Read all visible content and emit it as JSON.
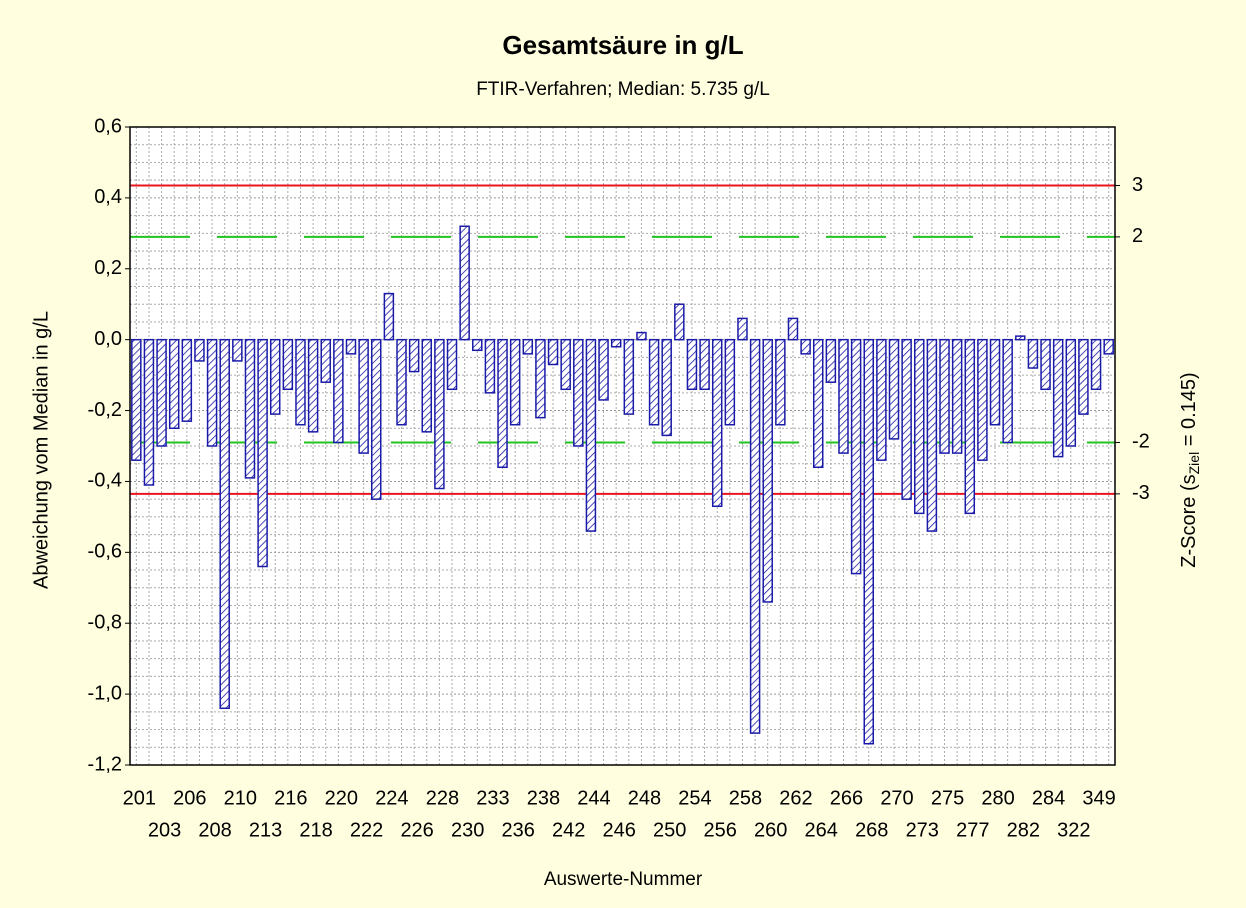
{
  "chart_data": {
    "type": "bar",
    "title": "Gesamtsäure in g/L",
    "subtitle": "FTIR-Verfahren; Median: 5.735 g/L",
    "x_label": "Auswerte-Nummer",
    "y_label": "Abweichung vom Median in g/L",
    "y2_label": {
      "before": "Z-Score (s",
      "sub": "Ziel",
      "after": " = 0.145)"
    },
    "categories": [
      "201",
      null,
      "203",
      null,
      "206",
      null,
      "208",
      null,
      "210",
      null,
      "213",
      null,
      "216",
      null,
      "218",
      null,
      "220",
      null,
      "222",
      null,
      "224",
      null,
      "226",
      null,
      "228",
      null,
      "230",
      null,
      "233",
      null,
      "236",
      null,
      "238",
      null,
      "242",
      null,
      "244",
      null,
      "246",
      null,
      "248",
      null,
      "250",
      null,
      "254",
      null,
      "256",
      null,
      "258",
      null,
      "260",
      null,
      "262",
      null,
      "264",
      null,
      "266",
      null,
      "268",
      null,
      "270",
      null,
      "273",
      null,
      "275",
      null,
      "277",
      null,
      "280",
      null,
      "282",
      null,
      "284",
      null,
      "322",
      null,
      "349",
      null
    ],
    "values": [
      -0.34,
      -0.41,
      -0.3,
      -0.25,
      -0.23,
      -0.06,
      -0.3,
      -1.04,
      -0.06,
      -0.39,
      -0.64,
      -0.21,
      -0.14,
      -0.24,
      -0.26,
      -0.12,
      -0.29,
      -0.04,
      -0.32,
      -0.45,
      0.13,
      -0.24,
      -0.09,
      -0.26,
      -0.42,
      -0.14,
      0.32,
      -0.03,
      -0.15,
      -0.36,
      -0.24,
      -0.04,
      -0.22,
      -0.07,
      -0.14,
      -0.3,
      -0.54,
      -0.17,
      -0.02,
      -0.21,
      0.02,
      -0.24,
      -0.27,
      0.1,
      -0.14,
      -0.14,
      -0.47,
      -0.24,
      0.06,
      -1.11,
      -0.74,
      -0.24,
      0.06,
      -0.04,
      -0.36,
      -0.12,
      -0.32,
      -0.66,
      -1.14,
      -0.34,
      -0.28,
      -0.45,
      -0.49,
      -0.54,
      -0.32,
      -0.32,
      -0.49,
      -0.34,
      -0.24,
      -0.29,
      0.01,
      -0.08,
      -0.14,
      -0.33,
      -0.3,
      -0.21,
      -0.14,
      -0.04
    ],
    "color": "#1a1aa8",
    "ylim": [
      -1.2,
      0.6
    ],
    "yticks": [
      {
        "value": -1.2,
        "label": "-1,2"
      },
      {
        "value": -1.0,
        "label": "-1,0"
      },
      {
        "value": -0.8,
        "label": "-0,8"
      },
      {
        "value": -0.6,
        "label": "-0,6"
      },
      {
        "value": -0.4,
        "label": "-0,4"
      },
      {
        "value": -0.2,
        "label": "-0,2"
      },
      {
        "value": 0,
        "label": "0,0"
      },
      {
        "value": 0.2,
        "label": "0,2"
      },
      {
        "value": 0.4,
        "label": "0,4"
      },
      {
        "value": 0.6,
        "label": "0,6"
      }
    ],
    "reference_lines": [
      {
        "value": 0.435,
        "label": "3",
        "color": "#e8141e",
        "style": "solid"
      },
      {
        "value": 0.29,
        "label": "2",
        "color": "#22c422",
        "style": "dashed"
      },
      {
        "value": -0.29,
        "label": "-2",
        "color": "#22c422",
        "style": "dashed"
      },
      {
        "value": -0.435,
        "label": "-3",
        "color": "#e8141e",
        "style": "solid"
      }
    ],
    "grid": true
  }
}
